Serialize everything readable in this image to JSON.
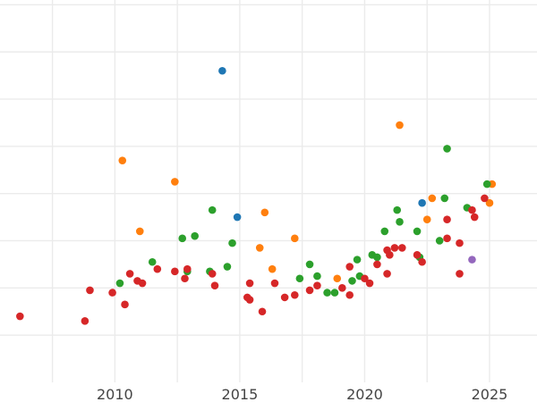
{
  "chart_data": {
    "type": "scatter",
    "title": "",
    "xlabel": "",
    "ylabel": "",
    "xlim": [
      2005.4,
      2026.9
    ],
    "ylim": [
      0,
      8.1
    ],
    "x_ticks": [
      2010,
      2015,
      2020,
      2025
    ],
    "x_tick_labels": [
      "2010",
      "2015",
      "2020",
      "2025"
    ],
    "y_gridlines": [
      1,
      2,
      3,
      4,
      5,
      6,
      7,
      8
    ],
    "x_minor_gridlines": [
      2007.5,
      2012.5,
      2017.5,
      2022.5
    ],
    "grid": true,
    "legend": "none",
    "series": [
      {
        "color": "#1f77b4",
        "points": [
          [
            2014.3,
            6.6
          ],
          [
            2014.9,
            3.5
          ],
          [
            2022.3,
            3.8
          ]
        ]
      },
      {
        "color": "#ff7f0e",
        "points": [
          [
            2010.3,
            4.7
          ],
          [
            2011.0,
            3.2
          ],
          [
            2012.4,
            4.25
          ],
          [
            2015.8,
            2.85
          ],
          [
            2016.0,
            3.6
          ],
          [
            2016.3,
            2.4
          ],
          [
            2017.2,
            3.05
          ],
          [
            2018.9,
            2.2
          ],
          [
            2021.4,
            5.45
          ],
          [
            2022.5,
            3.45
          ],
          [
            2022.7,
            3.9
          ],
          [
            2025.1,
            4.2
          ],
          [
            2025.0,
            3.8
          ]
        ]
      },
      {
        "color": "#2ca02c",
        "points": [
          [
            2010.2,
            2.1
          ],
          [
            2011.5,
            2.55
          ],
          [
            2012.7,
            3.05
          ],
          [
            2012.9,
            2.35
          ],
          [
            2013.2,
            3.1
          ],
          [
            2013.8,
            2.35
          ],
          [
            2013.9,
            3.65
          ],
          [
            2014.5,
            2.45
          ],
          [
            2014.7,
            2.95
          ],
          [
            2017.4,
            2.2
          ],
          [
            2017.8,
            2.5
          ],
          [
            2018.1,
            2.25
          ],
          [
            2018.5,
            1.9
          ],
          [
            2018.8,
            1.9
          ],
          [
            2019.5,
            2.15
          ],
          [
            2019.7,
            2.6
          ],
          [
            2019.8,
            2.25
          ],
          [
            2020.3,
            2.7
          ],
          [
            2020.5,
            2.65
          ],
          [
            2020.8,
            3.2
          ],
          [
            2021.3,
            3.65
          ],
          [
            2021.4,
            3.4
          ],
          [
            2022.1,
            3.2
          ],
          [
            2022.2,
            2.65
          ],
          [
            2023.0,
            3.0
          ],
          [
            2023.2,
            3.9
          ],
          [
            2023.3,
            4.95
          ],
          [
            2024.1,
            3.7
          ],
          [
            2024.9,
            4.2
          ]
        ]
      },
      {
        "color": "#d62728",
        "points": [
          [
            2006.2,
            1.4
          ],
          [
            2008.8,
            1.3
          ],
          [
            2009.0,
            1.95
          ],
          [
            2009.9,
            1.9
          ],
          [
            2010.4,
            1.65
          ],
          [
            2010.6,
            2.3
          ],
          [
            2010.9,
            2.15
          ],
          [
            2011.1,
            2.1
          ],
          [
            2011.7,
            2.4
          ],
          [
            2012.4,
            2.35
          ],
          [
            2012.8,
            2.2
          ],
          [
            2012.9,
            2.4
          ],
          [
            2013.9,
            2.3
          ],
          [
            2014.0,
            2.05
          ],
          [
            2015.3,
            1.8
          ],
          [
            2015.4,
            1.75
          ],
          [
            2015.4,
            2.1
          ],
          [
            2015.9,
            1.5
          ],
          [
            2016.4,
            2.1
          ],
          [
            2016.8,
            1.8
          ],
          [
            2017.2,
            1.85
          ],
          [
            2017.8,
            1.95
          ],
          [
            2018.1,
            2.05
          ],
          [
            2019.1,
            2.0
          ],
          [
            2019.4,
            2.45
          ],
          [
            2019.4,
            1.85
          ],
          [
            2020.0,
            2.2
          ],
          [
            2020.2,
            2.1
          ],
          [
            2020.5,
            2.5
          ],
          [
            2020.9,
            2.3
          ],
          [
            2020.9,
            2.8
          ],
          [
            2021.0,
            2.7
          ],
          [
            2021.2,
            2.85
          ],
          [
            2021.5,
            2.85
          ],
          [
            2022.1,
            2.7
          ],
          [
            2022.3,
            2.55
          ],
          [
            2023.3,
            3.45
          ],
          [
            2023.3,
            3.05
          ],
          [
            2023.8,
            2.95
          ],
          [
            2023.8,
            2.3
          ],
          [
            2024.3,
            3.65
          ],
          [
            2024.4,
            3.5
          ],
          [
            2024.8,
            3.9
          ]
        ]
      },
      {
        "color": "#9467bd",
        "points": [
          [
            2024.3,
            2.6
          ]
        ]
      }
    ]
  }
}
